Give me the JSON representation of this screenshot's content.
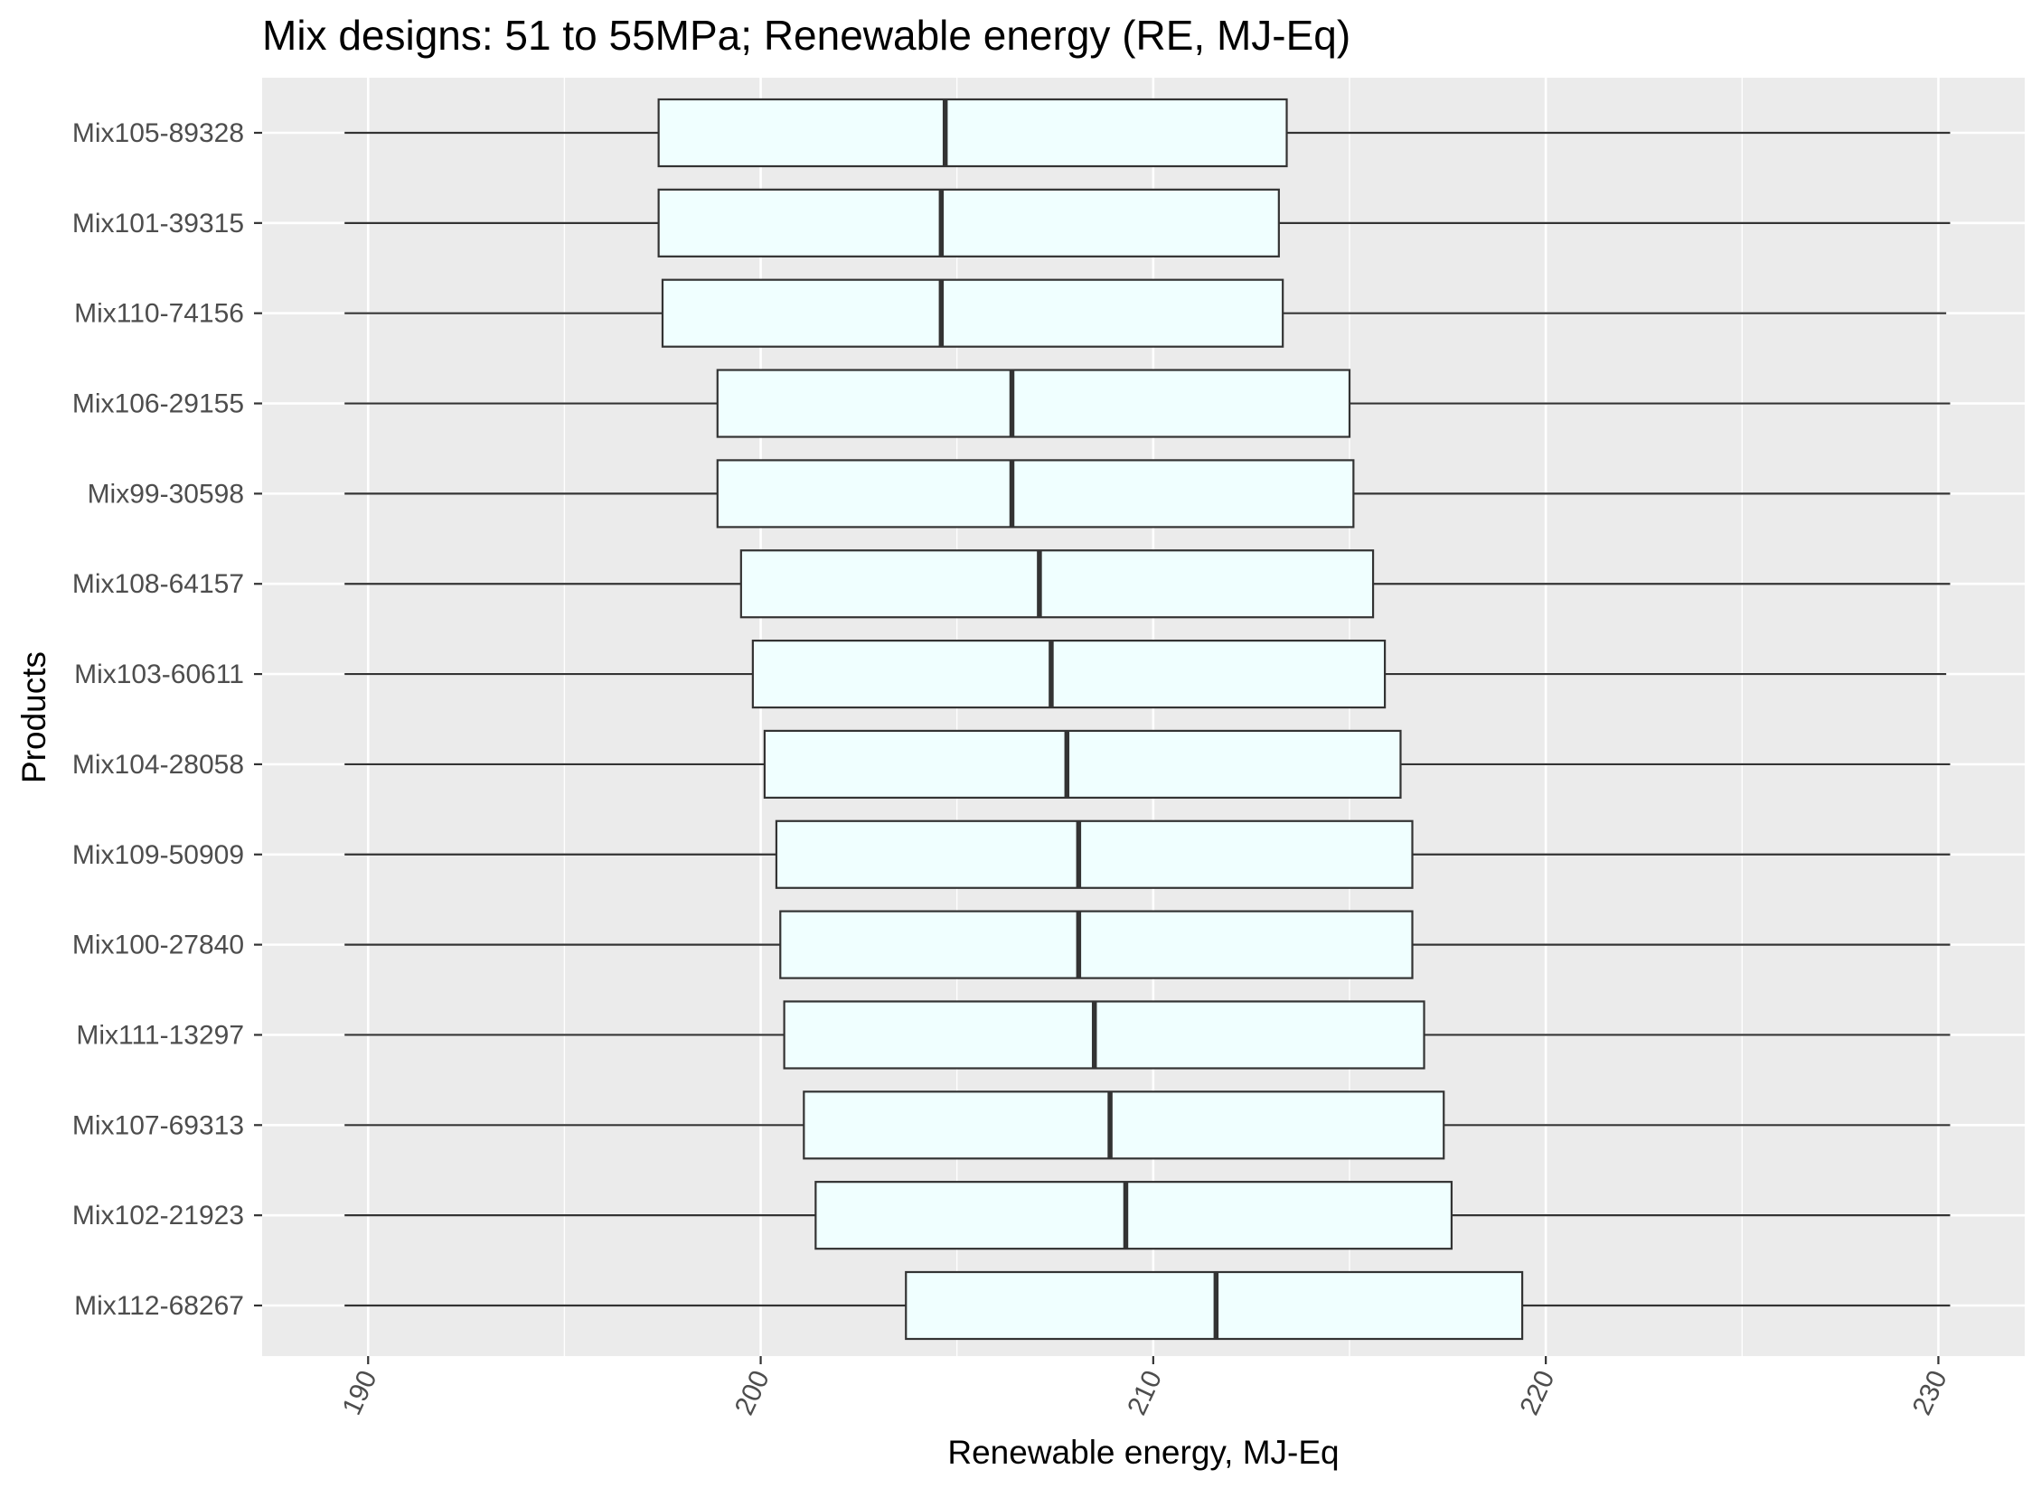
{
  "chart_data": {
    "type": "boxplot",
    "title": "Mix designs: 51 to 55MPa; Renewable energy (RE, MJ-Eq)",
    "xlabel": "Renewable energy, MJ-Eq",
    "ylabel": "Products",
    "xlim": [
      187.3,
      232.2
    ],
    "x_ticks": [
      190,
      200,
      210,
      220,
      230
    ],
    "x_tick_labels": [
      "190",
      "200",
      "210",
      "220",
      "230"
    ],
    "grid": true,
    "orientation": "horizontal",
    "colors": {
      "panel": "#ebebeb",
      "grid": "#ffffff",
      "box_fill": "#f0ffff",
      "box_stroke": "#333333",
      "tick_text": "#4d4d4d"
    },
    "categories": [
      "Mix105-89328",
      "Mix101-39315",
      "Mix110-74156",
      "Mix106-29155",
      "Mix99-30598",
      "Mix108-64157",
      "Mix103-60611",
      "Mix104-28058",
      "Mix109-50909",
      "Mix100-27840",
      "Mix111-13297",
      "Mix107-69313",
      "Mix102-21923",
      "Mix112-68267"
    ],
    "boxes": [
      {
        "label": "Mix105-89328",
        "min": 189.4,
        "q1": 197.4,
        "median": 204.7,
        "q3": 213.4,
        "max": 230.3
      },
      {
        "label": "Mix101-39315",
        "min": 189.4,
        "q1": 197.4,
        "median": 204.6,
        "q3": 213.2,
        "max": 230.3
      },
      {
        "label": "Mix110-74156",
        "min": 189.4,
        "q1": 197.5,
        "median": 204.6,
        "q3": 213.3,
        "max": 230.2
      },
      {
        "label": "Mix106-29155",
        "min": 189.4,
        "q1": 198.9,
        "median": 206.4,
        "q3": 215.0,
        "max": 230.3
      },
      {
        "label": "Mix99-30598",
        "min": 189.4,
        "q1": 198.9,
        "median": 206.4,
        "q3": 215.1,
        "max": 230.3
      },
      {
        "label": "Mix108-64157",
        "min": 189.4,
        "q1": 199.5,
        "median": 207.1,
        "q3": 215.6,
        "max": 230.3
      },
      {
        "label": "Mix103-60611",
        "min": 189.4,
        "q1": 199.8,
        "median": 207.4,
        "q3": 215.9,
        "max": 230.2
      },
      {
        "label": "Mix104-28058",
        "min": 189.4,
        "q1": 200.1,
        "median": 207.8,
        "q3": 216.3,
        "max": 230.3
      },
      {
        "label": "Mix109-50909",
        "min": 189.4,
        "q1": 200.4,
        "median": 208.1,
        "q3": 216.6,
        "max": 230.3
      },
      {
        "label": "Mix100-27840",
        "min": 189.4,
        "q1": 200.5,
        "median": 208.1,
        "q3": 216.6,
        "max": 230.3
      },
      {
        "label": "Mix111-13297",
        "min": 189.4,
        "q1": 200.6,
        "median": 208.5,
        "q3": 216.9,
        "max": 230.3
      },
      {
        "label": "Mix107-69313",
        "min": 189.4,
        "q1": 201.1,
        "median": 208.9,
        "q3": 217.4,
        "max": 230.3
      },
      {
        "label": "Mix102-21923",
        "min": 189.4,
        "q1": 201.4,
        "median": 209.3,
        "q3": 217.6,
        "max": 230.3
      },
      {
        "label": "Mix112-68267",
        "min": 189.4,
        "q1": 203.7,
        "median": 211.6,
        "q3": 219.4,
        "max": 230.3
      }
    ]
  }
}
